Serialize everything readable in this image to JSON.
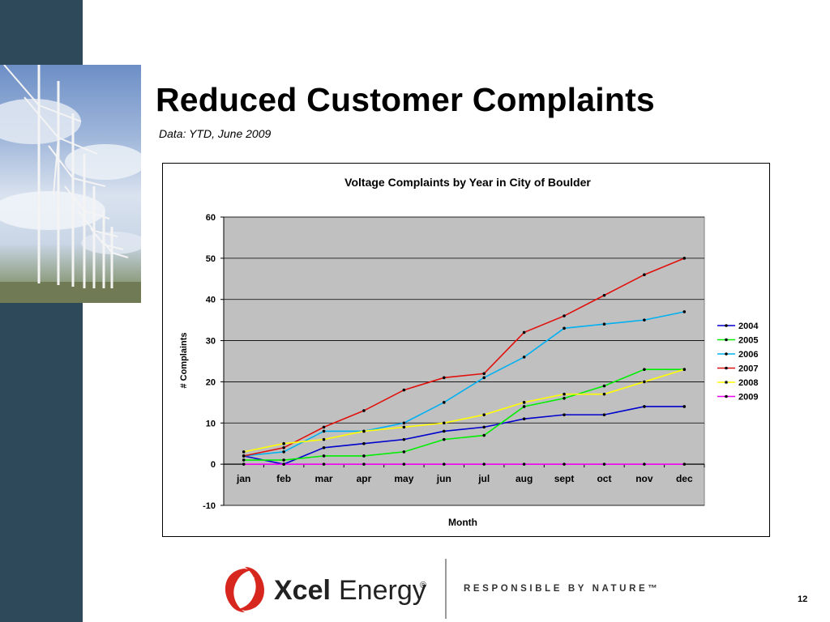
{
  "slide": {
    "title": "Reduced Customer Complaints",
    "subtitle": "Data: YTD, June 2009",
    "page_number": "12"
  },
  "footer": {
    "brand_bold": "Xcel",
    "brand_light": "Energy",
    "registered_mark": "®",
    "tagline": "RESPONSIBLE BY NATURE™"
  },
  "colors": {
    "sidebar": "#2e4a5a",
    "plot_background": "#c0c0c0",
    "logo_red": "#d7261e"
  },
  "chart_data": {
    "type": "line",
    "title": "Voltage Complaints by Year in City of Boulder",
    "xlabel": "Month",
    "ylabel": "# Complaints",
    "categories": [
      "jan",
      "feb",
      "mar",
      "apr",
      "may",
      "jun",
      "jul",
      "aug",
      "sept",
      "oct",
      "nov",
      "dec"
    ],
    "ylim": [
      -10,
      60
    ],
    "yticks": [
      -10,
      0,
      10,
      20,
      30,
      40,
      50,
      60
    ],
    "grid": true,
    "legend_position": "right",
    "series": [
      {
        "name": "2004",
        "color": "#0000cc",
        "values": [
          2,
          0,
          4,
          5,
          6,
          8,
          9,
          11,
          12,
          12,
          14,
          14
        ]
      },
      {
        "name": "2005",
        "color": "#00ee00",
        "values": [
          1,
          1,
          2,
          2,
          3,
          6,
          7,
          14,
          16,
          19,
          23,
          23
        ]
      },
      {
        "name": "2006",
        "color": "#00b0f0",
        "values": [
          2,
          3,
          8,
          8,
          10,
          15,
          21,
          26,
          33,
          34,
          35,
          37
        ]
      },
      {
        "name": "2007",
        "color": "#e0100c",
        "values": [
          2,
          4,
          9,
          13,
          18,
          21,
          22,
          32,
          36,
          41,
          46,
          50
        ]
      },
      {
        "name": "2008",
        "color": "#ffff00",
        "values": [
          3,
          5,
          6,
          8,
          9,
          10,
          12,
          15,
          17,
          17,
          20,
          23
        ]
      },
      {
        "name": "2009",
        "color": "#ee00ee",
        "values": [
          0,
          0,
          0,
          0,
          0,
          0,
          0,
          0,
          0,
          0,
          0,
          0
        ]
      }
    ]
  }
}
